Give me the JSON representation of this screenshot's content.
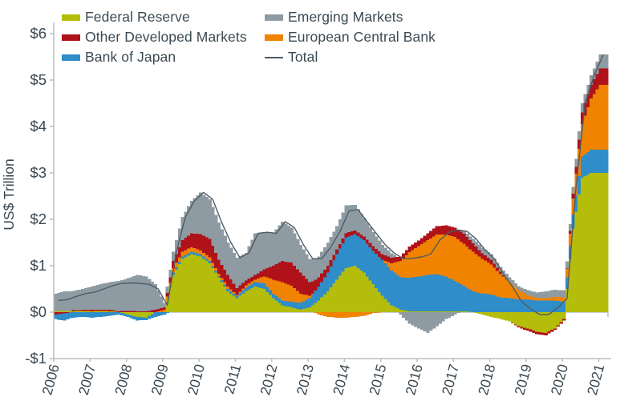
{
  "chart_data": {
    "type": "bar",
    "subtype": "stacked-bars-with-total-line",
    "title": "",
    "xlabel": "",
    "ylabel": "US$ Trillion",
    "ylim": [
      -1,
      6
    ],
    "grid": false,
    "legend_position": "top",
    "y_ticks": [
      {
        "value": 6,
        "label": "$6"
      },
      {
        "value": 5,
        "label": "$5"
      },
      {
        "value": 4,
        "label": "$4"
      },
      {
        "value": 3,
        "label": "$3"
      },
      {
        "value": 2,
        "label": "$2"
      },
      {
        "value": 1,
        "label": "$1"
      },
      {
        "value": 0,
        "label": "$0"
      },
      {
        "value": -1,
        "label": "-$1"
      }
    ],
    "x_tick_labels": [
      "2006",
      "2007",
      "2008",
      "2009",
      "2010",
      "2011",
      "2012",
      "2013",
      "2014",
      "2015",
      "2016",
      "2017",
      "2018",
      "2019",
      "2020",
      "2021"
    ],
    "x_start": 2006,
    "x_step_years": 0.25,
    "units": "US$ trillion, quarterly sampled values",
    "series": [
      {
        "name": "Federal Reserve",
        "color": "#b5bd0b",
        "values": [
          0.02,
          0.03,
          0.02,
          0.03,
          0.02,
          0.03,
          0.02,
          0.0,
          -0.05,
          -0.1,
          -0.12,
          0.0,
          0.0,
          0.8,
          1.15,
          1.25,
          1.2,
          1.05,
          0.75,
          0.45,
          0.3,
          0.45,
          0.55,
          0.5,
          0.3,
          0.15,
          0.1,
          0.05,
          0.1,
          0.25,
          0.45,
          0.7,
          0.95,
          1.0,
          0.85,
          0.6,
          0.35,
          0.15,
          0.05,
          0.02,
          0.02,
          0.02,
          0.02,
          0.02,
          0.02,
          0.02,
          0.0,
          -0.05,
          -0.1,
          -0.15,
          -0.2,
          -0.3,
          -0.35,
          -0.42,
          -0.45,
          -0.35,
          -0.15,
          1.8,
          2.9,
          3.0,
          3.0
        ]
      },
      {
        "name": "Bank of Japan",
        "color": "#2f8dca",
        "values": [
          -0.1,
          -0.15,
          -0.12,
          -0.1,
          -0.12,
          -0.1,
          -0.08,
          -0.05,
          -0.05,
          -0.08,
          -0.05,
          -0.1,
          -0.05,
          0.05,
          0.05,
          0.05,
          0.05,
          0.05,
          0.03,
          0.05,
          0.05,
          0.08,
          0.1,
          0.12,
          0.1,
          0.1,
          0.12,
          0.15,
          0.2,
          0.3,
          0.4,
          0.55,
          0.65,
          0.68,
          0.7,
          0.72,
          0.78,
          0.75,
          0.7,
          0.72,
          0.75,
          0.78,
          0.8,
          0.75,
          0.65,
          0.55,
          0.45,
          0.4,
          0.38,
          0.32,
          0.3,
          0.28,
          0.27,
          0.25,
          0.25,
          0.25,
          0.22,
          0.3,
          0.45,
          0.5,
          0.5
        ]
      },
      {
        "name": "European Central Bank",
        "color": "#f08300",
        "values": [
          0,
          0,
          0,
          0,
          0,
          0,
          0,
          0,
          0,
          0,
          0,
          0,
          0.05,
          0.1,
          0.1,
          0.1,
          0.08,
          0.08,
          0.05,
          0.05,
          0.02,
          0.05,
          0.05,
          0.15,
          0.3,
          0.4,
          0.35,
          0.2,
          0.05,
          -0.05,
          -0.1,
          -0.12,
          -0.12,
          -0.1,
          -0.08,
          -0.02,
          0.0,
          0.15,
          0.35,
          0.55,
          0.65,
          0.75,
          0.85,
          0.9,
          0.95,
          0.9,
          0.85,
          0.75,
          0.65,
          0.5,
          0.35,
          0.2,
          0.1,
          0.05,
          0.05,
          0.08,
          0.1,
          0.35,
          0.7,
          1.1,
          1.4
        ]
      },
      {
        "name": "Other Developed Markets",
        "color": "#b01219",
        "values": [
          -0.05,
          -0.03,
          0.02,
          0.02,
          0.03,
          0.02,
          0.03,
          0.02,
          0.03,
          0.02,
          0.02,
          0.05,
          0.05,
          0.15,
          0.25,
          0.3,
          0.35,
          0.4,
          0.3,
          0.25,
          0.15,
          0.1,
          0.1,
          0.15,
          0.3,
          0.45,
          0.5,
          0.45,
          0.3,
          0.2,
          0.15,
          0.1,
          0.1,
          0.08,
          0.08,
          0.1,
          0.12,
          0.12,
          0.1,
          0.12,
          0.12,
          0.15,
          0.18,
          0.2,
          0.2,
          0.22,
          0.18,
          0.12,
          0.1,
          0.05,
          0.0,
          -0.03,
          -0.05,
          -0.05,
          -0.05,
          -0.03,
          -0.03,
          0.1,
          0.25,
          0.3,
          0.35
        ]
      },
      {
        "name": "Emerging Markets",
        "color": "#8f9ba3",
        "values": [
          0.38,
          0.42,
          0.42,
          0.45,
          0.5,
          0.55,
          0.6,
          0.65,
          0.7,
          0.78,
          0.75,
          0.55,
          0.1,
          0.2,
          0.5,
          0.7,
          0.9,
          0.85,
          0.8,
          0.7,
          0.65,
          0.6,
          0.9,
          0.8,
          0.7,
          0.85,
          0.75,
          0.6,
          0.5,
          0.45,
          0.5,
          0.5,
          0.6,
          0.55,
          0.4,
          0.3,
          0.2,
          0.1,
          -0.05,
          -0.25,
          -0.35,
          -0.45,
          -0.3,
          -0.15,
          -0.05,
          0.05,
          0.1,
          0.12,
          0.12,
          0.1,
          0.1,
          0.08,
          0.1,
          0.12,
          0.15,
          0.15,
          0.15,
          0.15,
          0.2,
          0.2,
          0.3
        ]
      }
    ],
    "negative_stack_order": [
      0,
      3,
      1,
      2,
      4
    ],
    "total_line": {
      "name": "Total",
      "color": "#4d5c66",
      "values": [
        0.25,
        0.27,
        0.34,
        0.4,
        0.43,
        0.5,
        0.57,
        0.62,
        0.63,
        0.62,
        0.6,
        0.5,
        0.15,
        1.3,
        2.05,
        2.4,
        2.58,
        2.43,
        1.93,
        1.5,
        1.17,
        1.28,
        1.7,
        1.72,
        1.7,
        1.95,
        1.82,
        1.45,
        1.15,
        1.15,
        1.4,
        1.73,
        2.18,
        2.21,
        1.95,
        1.7,
        1.45,
        1.27,
        1.15,
        1.16,
        1.19,
        1.25,
        1.55,
        1.72,
        1.77,
        1.74,
        1.58,
        1.34,
        1.15,
        0.82,
        0.55,
        0.23,
        0.07,
        -0.05,
        -0.05,
        0.1,
        0.29,
        2.7,
        4.5,
        5.1,
        5.55
      ]
    },
    "legend_columns": [
      [
        {
          "label": "Federal Reserve",
          "color": "#b5bd0b",
          "swatch": "box"
        },
        {
          "label": "Other Developed Markets",
          "color": "#b01219",
          "swatch": "box"
        },
        {
          "label": "Bank of Japan",
          "color": "#2f8dca",
          "swatch": "box"
        }
      ],
      [
        {
          "label": "Emerging Markets",
          "color": "#8f9ba3",
          "swatch": "box"
        },
        {
          "label": "European Central Bank",
          "color": "#f08300",
          "swatch": "box"
        },
        {
          "label": "Total",
          "color": "#4d5c66",
          "swatch": "line"
        }
      ]
    ]
  },
  "style_colors": {
    "axis_line": "#b9bfc2",
    "tick_text": "#3a4750",
    "background": "#ffffff"
  }
}
